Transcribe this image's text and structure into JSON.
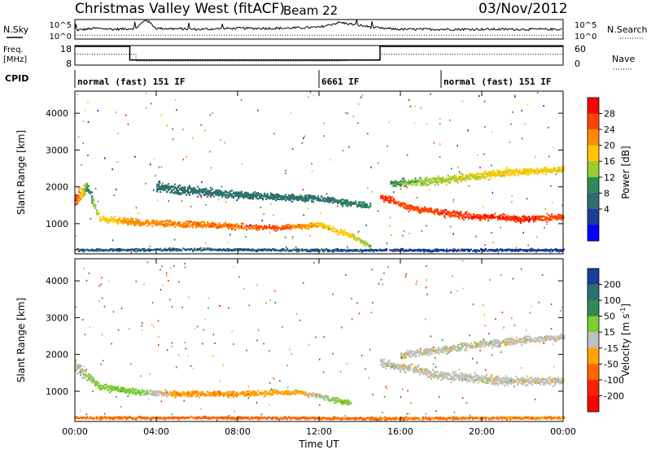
{
  "header": {
    "station": "Christmas Valley West (fitACF)",
    "beam": "Beam 22",
    "date": "03/Nov/2012"
  },
  "sky_panel": {
    "left_label": "N.Sky",
    "right_label": "N.Search",
    "left_ticks": [
      "10^5",
      "10^0"
    ],
    "right_ticks": [
      "10^5",
      "10^0"
    ]
  },
  "freq_panel": {
    "left_label_line1": "Freq.",
    "left_label_line2": "[MHz]",
    "right_label": "Nave",
    "left_ticks": [
      "18",
      "8"
    ],
    "right_ticks": [
      "60",
      "0"
    ]
  },
  "cpid": {
    "label": "CPID",
    "segments": [
      {
        "start_hour": 0,
        "text": "normal (fast) 151 IF"
      },
      {
        "start_hour": 12,
        "text": "6661 IF"
      },
      {
        "start_hour": 18,
        "text": "normal (fast) 151 IF"
      }
    ]
  },
  "axes": {
    "xlabel": "Time UT",
    "xticks": [
      "00:00",
      "04:00",
      "08:00",
      "12:00",
      "16:00",
      "20:00",
      "00:00"
    ],
    "ylabel": "Slant Range [km]",
    "yticks": [
      "1000",
      "2000",
      "3000",
      "4000"
    ]
  },
  "power_colorbar": {
    "label": "Power [dB]",
    "ticks": [
      "28",
      "24",
      "20",
      "16",
      "12",
      "8",
      "4"
    ],
    "colors": [
      "#ff0000",
      "#ff4500",
      "#ff8c00",
      "#ffc800",
      "#9acd32",
      "#2e8b57",
      "#2f6f6f",
      "#1e3c9c",
      "#0000ff"
    ]
  },
  "velocity_colorbar": {
    "label_main": "Velocity [m s",
    "label_sup": "-1",
    "label_end": "]",
    "ticks": [
      "200",
      "100",
      "50",
      "15",
      "-15",
      "-50",
      "-100",
      "-200"
    ],
    "colors": [
      "#1e3c9c",
      "#2f6f6f",
      "#2e8b57",
      "#7ccd32",
      "#c0c0c0",
      "#ffa500",
      "#ff6600",
      "#ff2200",
      "#ff0000"
    ]
  },
  "chart_data": [
    {
      "type": "line",
      "title": "N.Sky / N.Search",
      "x_range_hours": [
        0,
        24
      ],
      "series": [
        {
          "name": "N.Sky",
          "x": [
            0,
            1,
            2,
            3,
            3.5,
            4,
            6,
            8,
            10,
            12,
            13,
            14,
            15,
            16,
            18,
            20,
            22,
            24
          ],
          "y": [
            0.45,
            0.55,
            0.5,
            0.55,
            1.0,
            0.55,
            0.5,
            0.55,
            0.55,
            0.6,
            0.85,
            0.7,
            0.55,
            0.5,
            0.5,
            0.5,
            0.5,
            0.5
          ]
        },
        {
          "name": "N.Search",
          "x": [
            0,
            24
          ],
          "y": [
            0.2,
            0.2
          ]
        }
      ]
    },
    {
      "type": "line",
      "title": "Freq [MHz] / Nave",
      "x_range_hours": [
        0,
        24
      ],
      "ylim": [
        8,
        18
      ],
      "series": [
        {
          "name": "Freq",
          "x": [
            0,
            2.7,
            2.7,
            15,
            15,
            24
          ],
          "y": [
            18,
            18,
            11,
            11,
            18,
            18
          ]
        },
        {
          "name": "Nave",
          "x": [
            0,
            3,
            3,
            13,
            13.5,
            15,
            15,
            24
          ],
          "y": [
            14,
            14,
            10.5,
            10.5,
            10.8,
            10.8,
            14,
            14
          ]
        }
      ]
    },
    {
      "type": "heatmap",
      "title": "Power [dB]",
      "xlabel": "Time UT",
      "ylabel": "Slant Range [km]",
      "x_range_hours": [
        0,
        24
      ],
      "ylim": [
        180,
        4600
      ],
      "clim": [
        0,
        30
      ],
      "features": [
        {
          "name": "band",
          "points": [
            [
              0,
              1700,
              28,
              450
            ],
            [
              0.6,
              2000,
              10,
              400
            ],
            [
              1.2,
              1150,
              18,
              200
            ],
            [
              3,
              1050,
              22,
              220
            ],
            [
              6,
              1000,
              24,
              200
            ],
            [
              8,
              950,
              24,
              180
            ],
            [
              10,
              900,
              26,
              160
            ],
            [
              12,
              1000,
              20,
              160
            ],
            [
              13.5,
              700,
              18,
              180
            ],
            [
              14.5,
              400,
              14,
              150
            ]
          ]
        },
        {
          "name": "upper",
          "points": [
            [
              4,
              2000,
              8,
              300
            ],
            [
              8,
              1800,
              8,
              250
            ],
            [
              12,
              1700,
              8,
              220
            ],
            [
              14.5,
              1500,
              10,
              180
            ]
          ]
        },
        {
          "name": "late",
          "points": [
            [
              15,
              1750,
              28,
              200
            ],
            [
              16.5,
              1450,
              26,
              200
            ],
            [
              19,
              1250,
              28,
              220
            ],
            [
              22,
              1150,
              28,
              200
            ],
            [
              24,
              1200,
              26,
              200
            ]
          ]
        },
        {
          "name": "upper_late",
          "points": [
            [
              15.5,
              2100,
              12,
              220
            ],
            [
              18,
              2200,
              16,
              250
            ],
            [
              21,
              2400,
              18,
              250
            ],
            [
              24,
              2500,
              18,
              200
            ]
          ]
        },
        {
          "name": "near",
          "points": [
            [
              0,
              300,
              6,
              80
            ],
            [
              6,
              320,
              6,
              80
            ],
            [
              12,
              300,
              6,
              80
            ],
            [
              18,
              300,
              4,
              80
            ],
            [
              24,
              300,
              4,
              80
            ]
          ]
        }
      ]
    },
    {
      "type": "heatmap",
      "title": "Velocity [m s-1]",
      "xlabel": "Time UT",
      "ylabel": "Slant Range [km]",
      "x_range_hours": [
        0,
        24
      ],
      "ylim": [
        180,
        4600
      ],
      "clim": [
        -200,
        200
      ],
      "features": [
        {
          "name": "band",
          "points": [
            [
              0,
              1700,
              0,
              450
            ],
            [
              1.2,
              1150,
              30,
              200
            ],
            [
              3,
              1000,
              40,
              200
            ],
            [
              5,
              950,
              -40,
              200
            ],
            [
              8,
              950,
              -40,
              180
            ],
            [
              11,
              1000,
              -20,
              160
            ],
            [
              13.5,
              700,
              40,
              180
            ]
          ]
        },
        {
          "name": "late",
          "points": [
            [
              15,
              1800,
              0,
              250
            ],
            [
              18,
              1450,
              0,
              300
            ],
            [
              21,
              1300,
              0,
              280
            ],
            [
              24,
              1300,
              0,
              250
            ]
          ]
        },
        {
          "name": "upper_late",
          "points": [
            [
              16,
              2000,
              0,
              250
            ],
            [
              20,
              2300,
              0,
              250
            ],
            [
              24,
              2500,
              0,
              200
            ]
          ]
        },
        {
          "name": "near",
          "points": [
            [
              0,
              300,
              -60,
              80
            ],
            [
              8,
              300,
              -80,
              80
            ],
            [
              14,
              280,
              -60,
              80
            ],
            [
              24,
              300,
              -50,
              80
            ]
          ]
        }
      ]
    }
  ]
}
